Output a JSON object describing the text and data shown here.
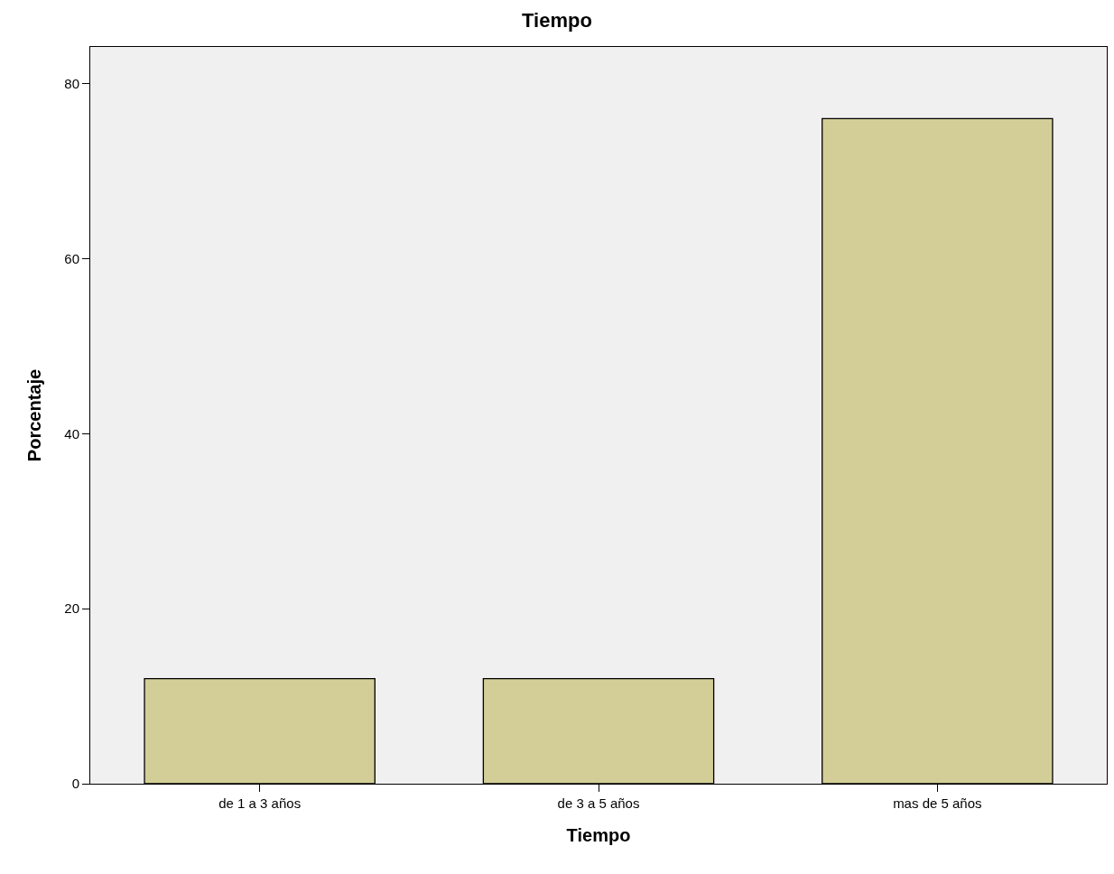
{
  "chart_data": {
    "type": "bar",
    "title": "Tiempo",
    "xlabel": "Tiempo",
    "ylabel": "Porcentaje",
    "categories": [
      "de 1 a 3 años",
      "de 3 a 5 años",
      "mas de 5 años"
    ],
    "values": [
      12,
      12,
      76
    ],
    "color": "#d3ce97",
    "ylim": [
      0,
      84.2
    ],
    "yticks": [
      0,
      20,
      40,
      60,
      80
    ],
    "grid": false
  }
}
